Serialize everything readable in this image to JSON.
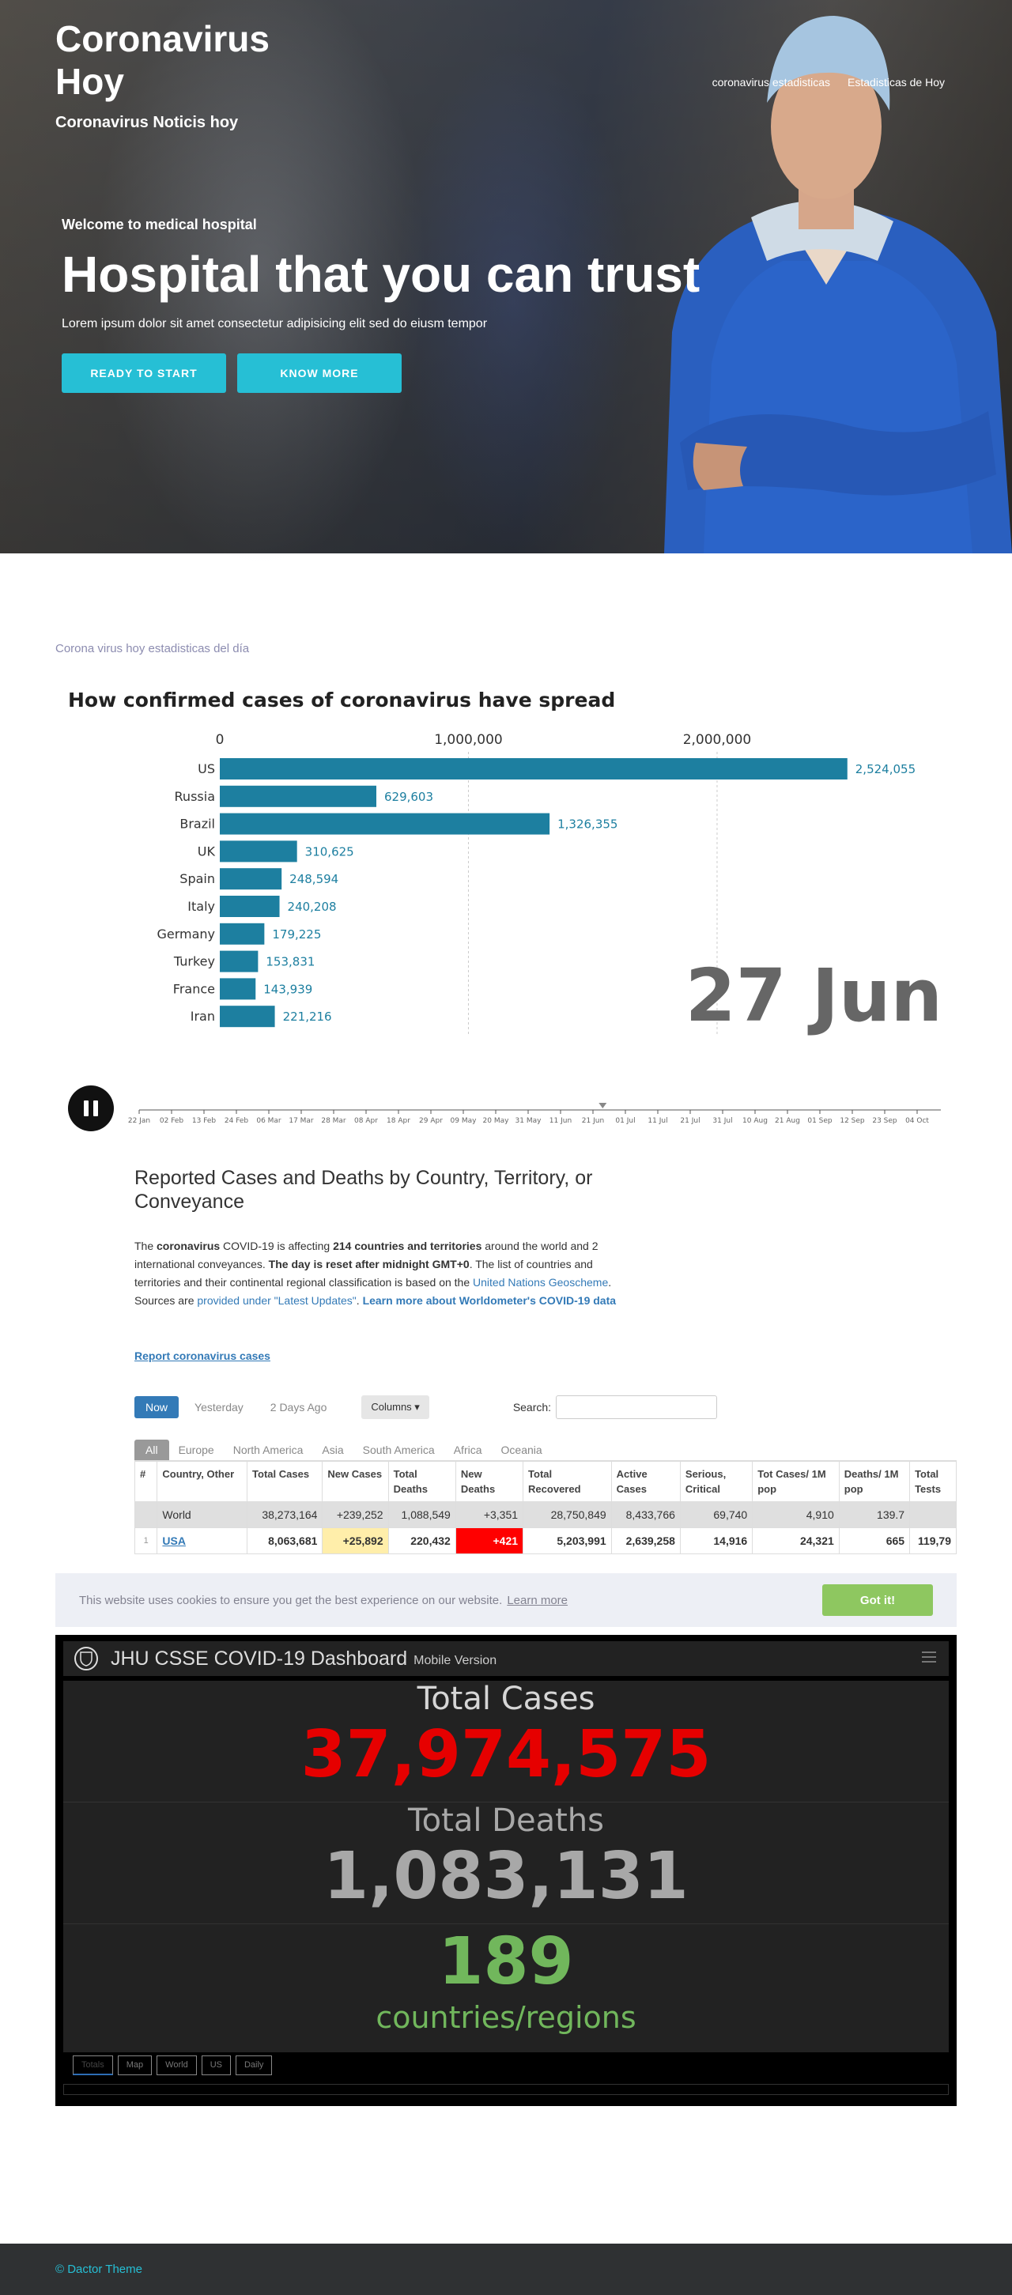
{
  "site": {
    "title": "Coronavirus Hoy",
    "subtitle": "Coronavirus Noticis hoy",
    "nav": [
      "coronavirus estadisticas",
      "Estadisticas de Hoy"
    ]
  },
  "hero": {
    "welcome": "Welcome to medical hospital",
    "headline": "Hospital that you can trust",
    "sub": "Lorem ipsum dolor sit amet consectetur adipisicing elit sed do eiusm tempor",
    "btn_start": "READY TO START",
    "btn_more": "KNOW MORE"
  },
  "stats_label": "Corona virus hoy estadisticas del día",
  "chart_data": {
    "type": "bar",
    "title": "How confirmed cases of coronavirus have spread",
    "categories": [
      "US",
      "Russia",
      "Brazil",
      "UK",
      "Spain",
      "Italy",
      "Germany",
      "Turkey",
      "France",
      "Iran"
    ],
    "values": [
      2524055,
      629603,
      1326355,
      310625,
      248594,
      240208,
      179225,
      153831,
      143939,
      221216
    ],
    "value_labels": [
      "2,524,055",
      "629,603",
      "1,326,355",
      "310,625",
      "248,594",
      "240,208",
      "179,225",
      "153,831",
      "143,939",
      "221,216"
    ],
    "x_ticks": [
      0,
      1000000,
      2000000
    ],
    "x_tick_labels": [
      "0",
      "1,000,000",
      "2,000,000"
    ],
    "xlim": [
      0,
      2900000
    ],
    "date_label": "27 Jun",
    "timeline": [
      "22 Jan",
      "02 Feb",
      "13 Feb",
      "24 Feb",
      "06 Mar",
      "17 Mar",
      "28 Mar",
      "08 Apr",
      "18 Apr",
      "29 Apr",
      "09 May",
      "20 May",
      "31 May",
      "11 Jun",
      "21 Jun",
      "01 Jul",
      "11 Jul",
      "21 Jul",
      "31 Jul",
      "10 Aug",
      "21 Aug",
      "01 Sep",
      "12 Sep",
      "23 Sep",
      "04 Oct"
    ],
    "bar_color": "#1d7fa0",
    "grid": true
  },
  "worldometer": {
    "heading": "Reported Cases and Deaths by Country, Territory, or Conveyance",
    "desc_pre": "The ",
    "desc_b1": "coronavirus",
    "desc_mid1": " COVID-19 is affecting ",
    "desc_b2": "214 countries and territories",
    "desc_mid2": " around the world and 2 international conveyances. ",
    "desc_b3": "The day is reset after midnight GMT+0",
    "desc_mid3": ". The list of countries and territories and their continental regional classification is based on the ",
    "desc_link1": "United Nations Geoscheme",
    "desc_mid4": ". Sources are ",
    "desc_link2": "provided under \"Latest Updates\"",
    "desc_mid5": ". ",
    "desc_link3": "Learn more about Worldometer's COVID-19 data",
    "report_link": "Report coronavirus cases",
    "time_pills": [
      "Now",
      "Yesterday",
      "2 Days Ago"
    ],
    "columns_btn": "Columns ▾",
    "search_label": "Search:",
    "region_tabs": [
      "All",
      "Europe",
      "North America",
      "Asia",
      "South America",
      "Africa",
      "Oceania"
    ],
    "headers": [
      "#",
      "Country, Other",
      "Total Cases",
      "New Cases",
      "Total Deaths",
      "New Deaths",
      "Total Recovered",
      "Active Cases",
      "Serious, Critical",
      "Tot Cases/ 1M pop",
      "Deaths/ 1M pop",
      "Total Tests"
    ],
    "world_row": [
      "",
      "World",
      "38,273,164",
      "+239,252",
      "1,088,549",
      "+3,351",
      "28,750,849",
      "8,433,766",
      "69,740",
      "4,910",
      "139.7",
      ""
    ],
    "usa_row": [
      "1",
      "USA",
      "8,063,681",
      "+25,892",
      "220,432",
      "+421",
      "5,203,991",
      "2,639,258",
      "14,916",
      "24,321",
      "665",
      "119,79"
    ]
  },
  "cookie": {
    "message": "This website uses cookies to ensure you get the best experience on our website.",
    "learn_more": "Learn more",
    "button": "Got it!"
  },
  "jhu": {
    "title": "JHU CSSE COVID-19 Dashboard",
    "mobile": "Mobile Version",
    "total_cases_label": "Total Cases",
    "total_cases": "37,974,575",
    "total_deaths_label": "Total Deaths",
    "total_deaths": "1,083,131",
    "countries": "189",
    "countries_label": "countries/regions",
    "tabs": [
      "Totals",
      "Map",
      "World",
      "US",
      "Daily"
    ]
  },
  "footer": {
    "text": "© Dactor Theme"
  }
}
